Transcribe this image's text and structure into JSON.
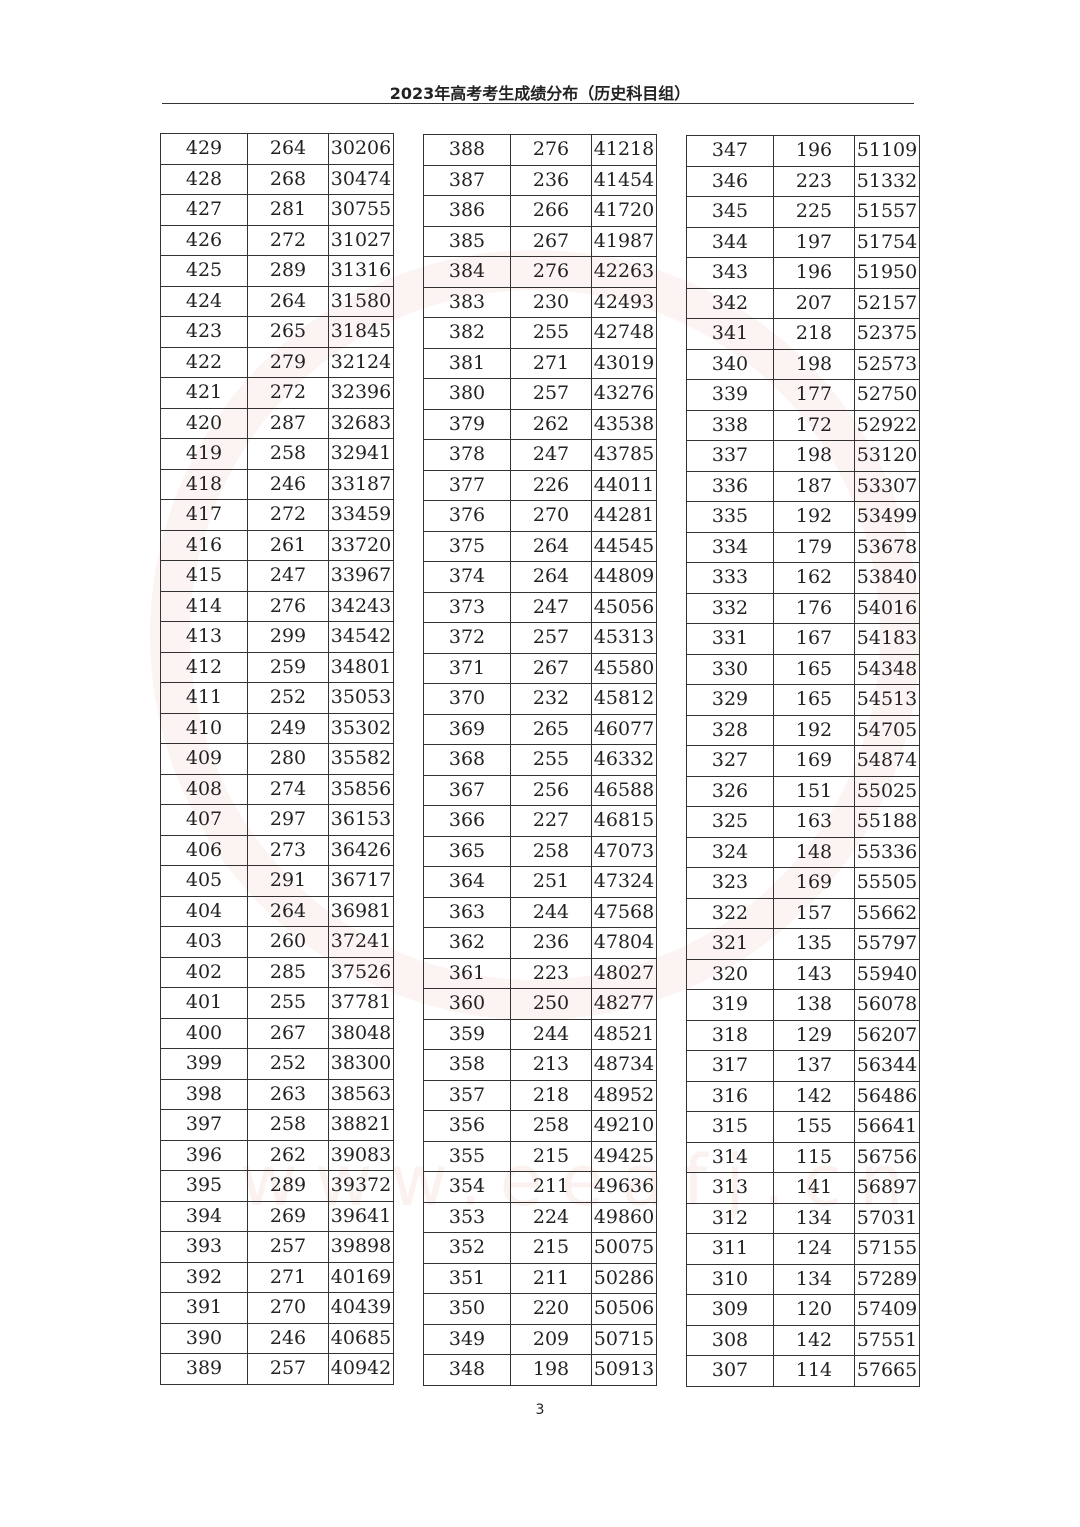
{
  "header": {
    "title": "2023年高考考生成绩分布（历史科目组）"
  },
  "tables": [
    {
      "rows": [
        [
          "429",
          "264",
          "30206"
        ],
        [
          "428",
          "268",
          "30474"
        ],
        [
          "427",
          "281",
          "30755"
        ],
        [
          "426",
          "272",
          "31027"
        ],
        [
          "425",
          "289",
          "31316"
        ],
        [
          "424",
          "264",
          "31580"
        ],
        [
          "423",
          "265",
          "31845"
        ],
        [
          "422",
          "279",
          "32124"
        ],
        [
          "421",
          "272",
          "32396"
        ],
        [
          "420",
          "287",
          "32683"
        ],
        [
          "419",
          "258",
          "32941"
        ],
        [
          "418",
          "246",
          "33187"
        ],
        [
          "417",
          "272",
          "33459"
        ],
        [
          "416",
          "261",
          "33720"
        ],
        [
          "415",
          "247",
          "33967"
        ],
        [
          "414",
          "276",
          "34243"
        ],
        [
          "413",
          "299",
          "34542"
        ],
        [
          "412",
          "259",
          "34801"
        ],
        [
          "411",
          "252",
          "35053"
        ],
        [
          "410",
          "249",
          "35302"
        ],
        [
          "409",
          "280",
          "35582"
        ],
        [
          "408",
          "274",
          "35856"
        ],
        [
          "407",
          "297",
          "36153"
        ],
        [
          "406",
          "273",
          "36426"
        ],
        [
          "405",
          "291",
          "36717"
        ],
        [
          "404",
          "264",
          "36981"
        ],
        [
          "403",
          "260",
          "37241"
        ],
        [
          "402",
          "285",
          "37526"
        ],
        [
          "401",
          "255",
          "37781"
        ],
        [
          "400",
          "267",
          "38048"
        ],
        [
          "399",
          "252",
          "38300"
        ],
        [
          "398",
          "263",
          "38563"
        ],
        [
          "397",
          "258",
          "38821"
        ],
        [
          "396",
          "262",
          "39083"
        ],
        [
          "395",
          "289",
          "39372"
        ],
        [
          "394",
          "269",
          "39641"
        ],
        [
          "393",
          "257",
          "39898"
        ],
        [
          "392",
          "271",
          "40169"
        ],
        [
          "391",
          "270",
          "40439"
        ],
        [
          "390",
          "246",
          "40685"
        ],
        [
          "389",
          "257",
          "40942"
        ]
      ]
    },
    {
      "rows": [
        [
          "388",
          "276",
          "41218"
        ],
        [
          "387",
          "236",
          "41454"
        ],
        [
          "386",
          "266",
          "41720"
        ],
        [
          "385",
          "267",
          "41987"
        ],
        [
          "384",
          "276",
          "42263"
        ],
        [
          "383",
          "230",
          "42493"
        ],
        [
          "382",
          "255",
          "42748"
        ],
        [
          "381",
          "271",
          "43019"
        ],
        [
          "380",
          "257",
          "43276"
        ],
        [
          "379",
          "262",
          "43538"
        ],
        [
          "378",
          "247",
          "43785"
        ],
        [
          "377",
          "226",
          "44011"
        ],
        [
          "376",
          "270",
          "44281"
        ],
        [
          "375",
          "264",
          "44545"
        ],
        [
          "374",
          "264",
          "44809"
        ],
        [
          "373",
          "247",
          "45056"
        ],
        [
          "372",
          "257",
          "45313"
        ],
        [
          "371",
          "267",
          "45580"
        ],
        [
          "370",
          "232",
          "45812"
        ],
        [
          "369",
          "265",
          "46077"
        ],
        [
          "368",
          "255",
          "46332"
        ],
        [
          "367",
          "256",
          "46588"
        ],
        [
          "366",
          "227",
          "46815"
        ],
        [
          "365",
          "258",
          "47073"
        ],
        [
          "364",
          "251",
          "47324"
        ],
        [
          "363",
          "244",
          "47568"
        ],
        [
          "362",
          "236",
          "47804"
        ],
        [
          "361",
          "223",
          "48027"
        ],
        [
          "360",
          "250",
          "48277"
        ],
        [
          "359",
          "244",
          "48521"
        ],
        [
          "358",
          "213",
          "48734"
        ],
        [
          "357",
          "218",
          "48952"
        ],
        [
          "356",
          "258",
          "49210"
        ],
        [
          "355",
          "215",
          "49425"
        ],
        [
          "354",
          "211",
          "49636"
        ],
        [
          "353",
          "224",
          "49860"
        ],
        [
          "352",
          "215",
          "50075"
        ],
        [
          "351",
          "211",
          "50286"
        ],
        [
          "350",
          "220",
          "50506"
        ],
        [
          "349",
          "209",
          "50715"
        ],
        [
          "348",
          "198",
          "50913"
        ]
      ]
    },
    {
      "rows": [
        [
          "347",
          "196",
          "51109"
        ],
        [
          "346",
          "223",
          "51332"
        ],
        [
          "345",
          "225",
          "51557"
        ],
        [
          "344",
          "197",
          "51754"
        ],
        [
          "343",
          "196",
          "51950"
        ],
        [
          "342",
          "207",
          "52157"
        ],
        [
          "341",
          "218",
          "52375"
        ],
        [
          "340",
          "198",
          "52573"
        ],
        [
          "339",
          "177",
          "52750"
        ],
        [
          "338",
          "172",
          "52922"
        ],
        [
          "337",
          "198",
          "53120"
        ],
        [
          "336",
          "187",
          "53307"
        ],
        [
          "335",
          "192",
          "53499"
        ],
        [
          "334",
          "179",
          "53678"
        ],
        [
          "333",
          "162",
          "53840"
        ],
        [
          "332",
          "176",
          "54016"
        ],
        [
          "331",
          "167",
          "54183"
        ],
        [
          "330",
          "165",
          "54348"
        ],
        [
          "329",
          "165",
          "54513"
        ],
        [
          "328",
          "192",
          "54705"
        ],
        [
          "327",
          "169",
          "54874"
        ],
        [
          "326",
          "151",
          "55025"
        ],
        [
          "325",
          "163",
          "55188"
        ],
        [
          "324",
          "148",
          "55336"
        ],
        [
          "323",
          "169",
          "55505"
        ],
        [
          "322",
          "157",
          "55662"
        ],
        [
          "321",
          "135",
          "55797"
        ],
        [
          "320",
          "143",
          "55940"
        ],
        [
          "319",
          "138",
          "56078"
        ],
        [
          "318",
          "129",
          "56207"
        ],
        [
          "317",
          "137",
          "56344"
        ],
        [
          "316",
          "142",
          "56486"
        ],
        [
          "315",
          "155",
          "56641"
        ],
        [
          "314",
          "115",
          "56756"
        ],
        [
          "313",
          "141",
          "56897"
        ],
        [
          "312",
          "134",
          "57031"
        ],
        [
          "311",
          "124",
          "57155"
        ],
        [
          "310",
          "134",
          "57289"
        ],
        [
          "309",
          "120",
          "57409"
        ],
        [
          "308",
          "142",
          "57551"
        ],
        [
          "307",
          "114",
          "57665"
        ]
      ]
    }
  ],
  "watermark": "www.eeafj.cn",
  "footer": {
    "page_number": "3"
  }
}
